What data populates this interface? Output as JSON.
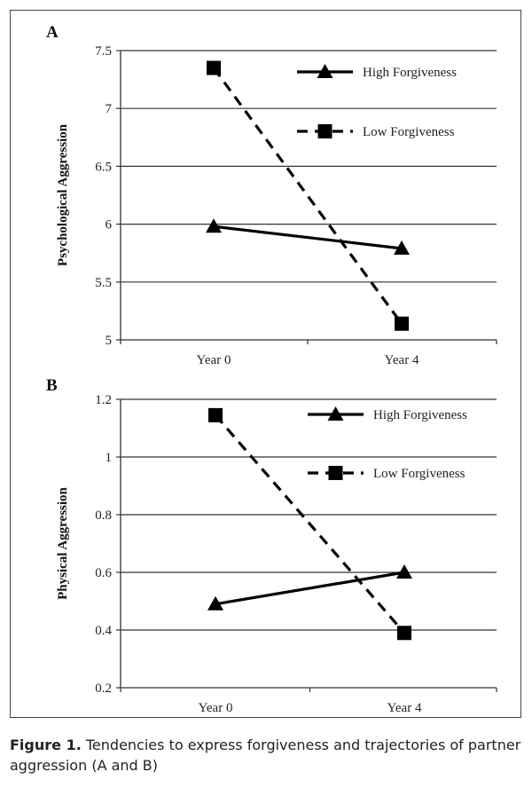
{
  "caption": {
    "label": "Figure 1.",
    "text": "Tendencies to express forgiveness and trajectories of partner aggression (A and B)"
  },
  "chart_data": [
    {
      "panel": "A",
      "type": "line",
      "categories": [
        "Year 0",
        "Year 4"
      ],
      "ylabel": "Psychological Aggression",
      "ylim": [
        5,
        7.5
      ],
      "yticks": [
        "5",
        "5.5",
        "6",
        "6.5",
        "7",
        "7.5"
      ],
      "grid": true,
      "legend_position": "top-right",
      "series": [
        {
          "name": "High Forgiveness",
          "values": [
            5.98,
            5.79
          ],
          "marker": "triangle",
          "line_style": "solid",
          "color": "#000000"
        },
        {
          "name": "Low Forgiveness",
          "values": [
            7.35,
            5.14
          ],
          "marker": "square",
          "line_style": "dashed",
          "color": "#000000"
        }
      ]
    },
    {
      "panel": "B",
      "type": "line",
      "categories": [
        "Year 0",
        "Year 4"
      ],
      "ylabel": "Physical Aggression",
      "ylim": [
        0.2,
        1.2
      ],
      "yticks": [
        "0.2",
        "0.4",
        "0.6",
        "0.8",
        "1",
        "1.2"
      ],
      "grid": true,
      "legend_position": "top-right",
      "series": [
        {
          "name": "High Forgiveness",
          "values": [
            0.49,
            0.6
          ],
          "marker": "triangle",
          "line_style": "solid",
          "color": "#000000"
        },
        {
          "name": "Low Forgiveness",
          "values": [
            1.145,
            0.39
          ],
          "marker": "square",
          "line_style": "dashed",
          "color": "#000000"
        }
      ]
    }
  ]
}
